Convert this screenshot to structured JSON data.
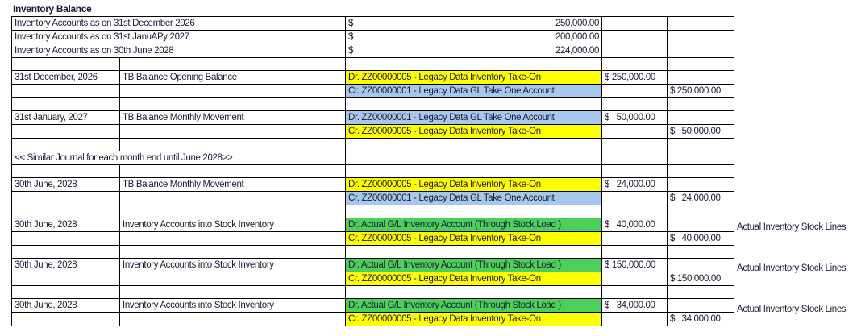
{
  "title": "Inventory Balance",
  "colors": {
    "yellow": "#ffff00",
    "blue": "#a7c8ec",
    "green": "#4ccf5b"
  },
  "balances": [
    {
      "label": "Inventory Accounts as on 31st December 2026",
      "currency": "$",
      "amount": "250,000.00"
    },
    {
      "label": "Inventory Accounts as on 31st JanuAPy 2027",
      "currency": "$",
      "amount": "200,000.00"
    },
    {
      "label": "Inventory Accounts as on 30th June 2028",
      "currency": "$",
      "amount": "224,000.00"
    }
  ],
  "rows": [
    {
      "type": "blank"
    },
    {
      "type": "entry",
      "date": "31st December, 2026",
      "desc": "TB Balance Opening Balance",
      "account": "Dr. ZZ00000005 - Legacy Data Inventory Take-On",
      "color": "yellow",
      "debit": "$ 250,000.00"
    },
    {
      "type": "entry",
      "account": "Cr. ZZ00000001 - Legacy Data GL Take One Account",
      "color": "blue",
      "credit": "$ 250,000.00"
    },
    {
      "type": "blank"
    },
    {
      "type": "entry",
      "date": "31st January, 2027",
      "desc": "TB Balance Monthly Movement",
      "account": "Dr. ZZ00000001 - Legacy Data GL Take One Account",
      "color": "blue",
      "debit": "$   50,000.00"
    },
    {
      "type": "entry",
      "account": "Cr. ZZ00000005 - Legacy Data Inventory Take-On",
      "color": "yellow",
      "credit": "$   50,000.00"
    },
    {
      "type": "blank"
    },
    {
      "type": "merged",
      "text": "<< Similar Journal for each month end until June 2028>>"
    },
    {
      "type": "blank"
    },
    {
      "type": "entry",
      "date": "30th June, 2028",
      "desc": "TB Balance Monthly Movement",
      "account": "Dr. ZZ00000005 - Legacy Data Inventory Take-On",
      "color": "yellow",
      "debit": "$   24,000.00"
    },
    {
      "type": "entry",
      "account": "Cr. ZZ00000001 - Legacy Data GL Take One Account",
      "color": "blue",
      "credit": "$   24,000.00"
    },
    {
      "type": "blank"
    },
    {
      "type": "entry",
      "date": "30th June, 2028",
      "desc": "Inventory Accounts into Stock Inventory",
      "account": "Dr. Actual G/L Inventory Account (Through Stock Load )",
      "color": "green",
      "debit": "$   40,000.00",
      "note": "Actual Inventory Stock Lines"
    },
    {
      "type": "entry",
      "account": "Cr. ZZ00000005 - Legacy Data Inventory Take-On",
      "color": "yellow",
      "credit": "$   40,000.00"
    },
    {
      "type": "blank"
    },
    {
      "type": "entry",
      "date": "30th June, 2028",
      "desc": "Inventory Accounts into Stock Inventory",
      "account": "Dr. Actual G/L Inventory Account (Through Stock Load )",
      "color": "green",
      "debit": "$ 150,000.00",
      "note": "Actual Inventory Stock Lines"
    },
    {
      "type": "entry",
      "account": "Cr. ZZ00000005 - Legacy Data Inventory Take-On",
      "color": "yellow",
      "credit": "$ 150,000.00"
    },
    {
      "type": "blank"
    },
    {
      "type": "entry",
      "date": "30th June, 2028",
      "desc": "Inventory Accounts into Stock Inventory",
      "account": "Dr.  Actual G/L Inventory Account (Through Stock Load )",
      "color": "green",
      "debit": "$   34,000.00",
      "note": "Actual Inventory Stock Lines"
    },
    {
      "type": "entry",
      "account": "Cr. ZZ00000005 - Legacy Data Inventory Take-On",
      "color": "yellow",
      "credit": "$   34,000.00"
    }
  ]
}
